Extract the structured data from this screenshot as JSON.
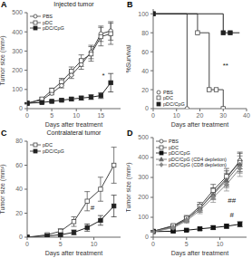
{
  "chart_data": [
    {
      "type": "line",
      "panel_label": "A",
      "title": "Injected tumor",
      "xlabel": "Days after treatment",
      "ylabel": "Tumor size (mm²)",
      "xlim": [
        0,
        19
      ],
      "ylim": [
        0,
        500
      ],
      "xticks": [
        0,
        5,
        10,
        15
      ],
      "yticks": [
        0,
        100,
        200,
        300,
        400,
        500
      ],
      "grid": false,
      "legend": "upper left",
      "series": [
        {
          "name": "PBS",
          "color": "#444444",
          "marker": "circle-open",
          "x": [
            0,
            3,
            5,
            7,
            9,
            11,
            13,
            15,
            17
          ],
          "values": [
            28,
            45,
            80,
            120,
            175,
            230,
            295,
            390,
            405
          ],
          "errors": [
            3,
            5,
            8,
            12,
            18,
            25,
            35,
            40,
            48
          ]
        },
        {
          "name": "pDC",
          "color": "#444444",
          "marker": "square-open",
          "x": [
            0,
            3,
            5,
            7,
            9,
            11,
            13,
            15,
            17
          ],
          "values": [
            28,
            50,
            95,
            140,
            195,
            250,
            285,
            375,
            390
          ],
          "errors": [
            3,
            8,
            12,
            18,
            22,
            30,
            38,
            48,
            55
          ]
        },
        {
          "name": "pDC/CpG",
          "color": "#222222",
          "marker": "square",
          "x": [
            0,
            3,
            5,
            7,
            9,
            11,
            13,
            15,
            17
          ],
          "values": [
            28,
            32,
            38,
            44,
            50,
            55,
            60,
            68,
            135
          ],
          "errors": [
            3,
            4,
            5,
            6,
            8,
            10,
            12,
            15,
            48
          ]
        }
      ],
      "annotations": [
        {
          "text": "*",
          "x": 15.5,
          "y": 155
        }
      ]
    },
    {
      "type": "step",
      "panel_label": "B",
      "xlabel": "Days after treatment",
      "ylabel": "%Survival",
      "xlim": [
        0,
        40
      ],
      "ylim": [
        0,
        105
      ],
      "xticks": [
        0,
        10,
        20,
        30,
        40
      ],
      "yticks": [
        0,
        20,
        40,
        60,
        80,
        100
      ],
      "grid": false,
      "legend": "lower left",
      "series": [
        {
          "name": "PBS",
          "color": "#444444",
          "marker": "circle-open",
          "x": [
            0,
            14,
            14.5
          ],
          "values": [
            100,
            100,
            0
          ]
        },
        {
          "name": "pDC",
          "color": "#444444",
          "marker": "square-open",
          "x": [
            0,
            19,
            19,
            24,
            24,
            27,
            27,
            30,
            30
          ],
          "values": [
            100,
            100,
            80,
            80,
            20,
            20,
            20,
            20,
            0
          ]
        },
        {
          "name": "pDC/CpG",
          "color": "#222222",
          "marker": "square",
          "x": [
            0,
            30,
            30,
            33,
            33,
            37
          ],
          "values": [
            100,
            100,
            80,
            80,
            80,
            80
          ]
        }
      ],
      "annotations": [
        {
          "text": "**",
          "x": 31,
          "y": 42
        }
      ]
    },
    {
      "type": "line",
      "panel_label": "C",
      "title": "Contralateral tumor",
      "xlabel": "Days after treatment",
      "ylabel": "Tumor size (mm²)",
      "xlim": [
        0,
        14
      ],
      "ylim": [
        0,
        80
      ],
      "xticks": [
        0,
        5,
        10
      ],
      "yticks": [
        0,
        20,
        40,
        60,
        80
      ],
      "grid": false,
      "legend": "upper left",
      "series": [
        {
          "name": "pDC",
          "color": "#444444",
          "marker": "square-open",
          "x": [
            0,
            3,
            5,
            7,
            9,
            11,
            13
          ],
          "values": [
            0,
            2,
            5,
            13,
            30,
            40,
            60
          ],
          "errors": [
            0,
            1,
            2,
            4,
            8,
            10,
            15
          ]
        },
        {
          "name": "pDC/CpG",
          "color": "#222222",
          "marker": "square",
          "x": [
            0,
            3,
            5,
            7,
            9,
            11,
            13
          ],
          "values": [
            0,
            1,
            2,
            4,
            8,
            14,
            26
          ],
          "errors": [
            0,
            0.5,
            1,
            2,
            3,
            4,
            9
          ]
        }
      ],
      "annotations": [
        {
          "text": "#",
          "x": 9.8,
          "y": 22
        }
      ]
    },
    {
      "type": "line",
      "panel_label": "D",
      "xlabel": "Days after treatment",
      "ylabel": "Tumor size (mm²)",
      "xlim": [
        0,
        14
      ],
      "ylim": [
        0,
        500
      ],
      "xticks": [
        0,
        5,
        10
      ],
      "yticks": [
        0,
        100,
        200,
        300,
        400,
        500
      ],
      "grid": false,
      "legend": "upper left",
      "series": [
        {
          "name": "PBS",
          "color": "#444444",
          "marker": "circle-open",
          "x": [
            0,
            3,
            5,
            7,
            9,
            11,
            13
          ],
          "values": [
            30,
            55,
            90,
            145,
            220,
            295,
            385
          ],
          "errors": [
            4,
            7,
            12,
            18,
            28,
            38,
            42
          ]
        },
        {
          "name": "pDC",
          "color": "#444444",
          "marker": "square-open",
          "x": [
            0,
            3,
            5,
            7,
            9,
            11,
            13
          ],
          "values": [
            30,
            58,
            95,
            155,
            235,
            305,
            375
          ],
          "errors": [
            4,
            8,
            14,
            20,
            30,
            40,
            46
          ]
        },
        {
          "name": "pDC/CpG",
          "color": "#111111",
          "marker": "square",
          "x": [
            0,
            3,
            5,
            7,
            9,
            11,
            13
          ],
          "values": [
            28,
            30,
            35,
            42,
            48,
            55,
            65
          ],
          "errors": [
            3,
            4,
            5,
            7,
            9,
            10,
            13
          ]
        },
        {
          "name": "pDC/CpG (CD4 depletion)",
          "color": "#666666",
          "marker": "triangle",
          "x": [
            0,
            3,
            5,
            7,
            9,
            11,
            13
          ],
          "values": [
            28,
            50,
            88,
            145,
            215,
            285,
            365
          ],
          "errors": [
            3,
            7,
            13,
            19,
            27,
            36,
            43
          ]
        },
        {
          "name": "pDC/CpG (CD8 depletion)",
          "color": "#888888",
          "marker": "diamond",
          "x": [
            0,
            3,
            5,
            7,
            9,
            11,
            13
          ],
          "values": [
            28,
            47,
            82,
            135,
            200,
            265,
            345
          ],
          "errors": [
            3,
            6,
            12,
            17,
            25,
            33,
            40
          ]
        }
      ],
      "annotations": [
        {
          "text": "##",
          "x": 11.8,
          "y": 168
        },
        {
          "text": "#",
          "x": 11.8,
          "y": 95
        }
      ]
    }
  ]
}
